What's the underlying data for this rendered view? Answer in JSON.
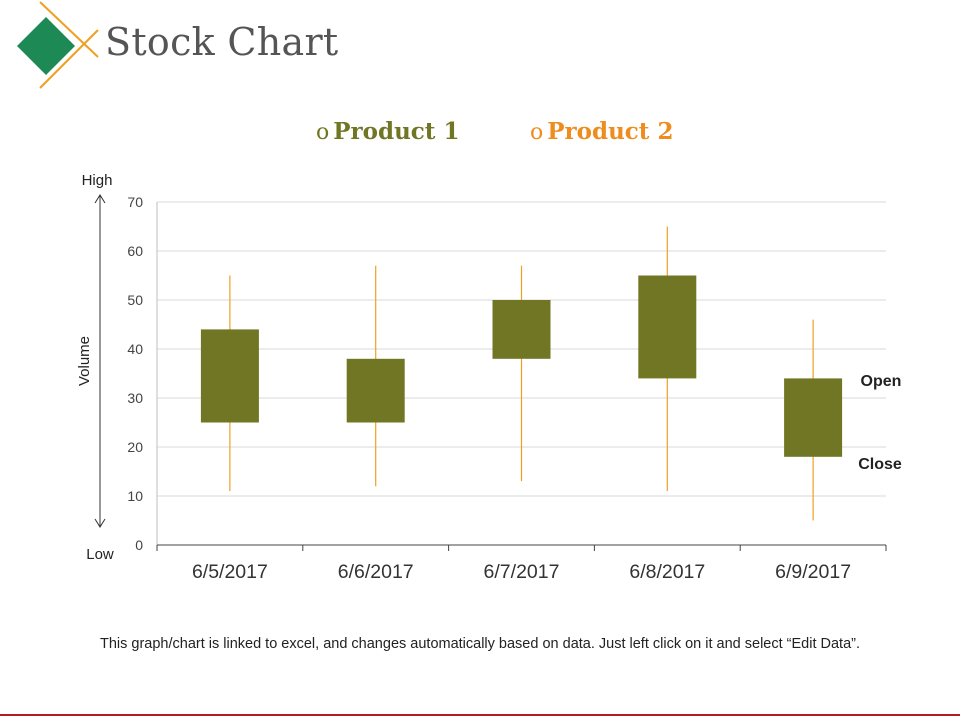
{
  "title": "Stock Chart",
  "colors": {
    "body": "#717625",
    "wick": "#f0a020",
    "product1": "#717625",
    "product2": "#ef8c1e",
    "logo_diamond": "#1d8a55",
    "logo_lines": "#f0a020",
    "gridline": "#d9d9d9",
    "axis": "#444444",
    "bottom_rule": "#b01e23"
  },
  "legend": [
    {
      "marker": "o",
      "label": "Product 1",
      "color": "#717625"
    },
    {
      "marker": "o",
      "label": "Product 2",
      "color": "#ef8c1e"
    }
  ],
  "annotations": {
    "high": "High",
    "low": "Low",
    "volume": "Volume",
    "open": "Open",
    "close": "Close"
  },
  "footnote": "This graph/chart is linked to excel, and changes automatically based on data. Just left click on it and select “Edit Data”.",
  "chart_data": {
    "type": "candlestick",
    "categories": [
      "6/5/2017",
      "6/6/2017",
      "6/7/2017",
      "6/8/2017",
      "6/9/2017"
    ],
    "series": [
      {
        "name": "Product 1",
        "values": [
          44,
          38,
          50,
          55,
          34
        ]
      },
      {
        "name": "Product 2",
        "values": [
          25,
          25,
          38,
          34,
          18
        ]
      }
    ],
    "high": [
      55,
      57,
      57,
      65,
      46
    ],
    "low": [
      11,
      12,
      13,
      11,
      5
    ],
    "ylim": [
      0,
      70
    ],
    "yticks": [
      0,
      10,
      20,
      30,
      40,
      50,
      60,
      70
    ],
    "ylabel": "Volume",
    "grid": true
  }
}
